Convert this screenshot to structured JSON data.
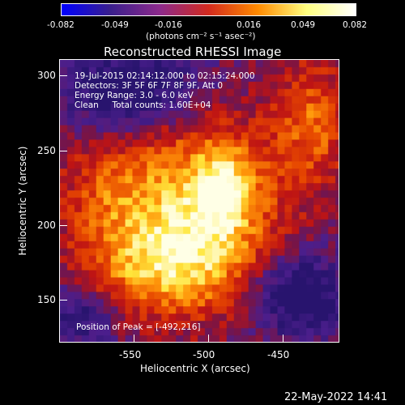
{
  "colorbar": {
    "ticks": [
      "-0.082",
      "-0.049",
      "-0.016",
      "0.016",
      "0.049",
      "0.082"
    ],
    "unit_label": "(photons cm⁻² s⁻¹ asec⁻²)",
    "colors": [
      "#0000ff",
      "#3a1f8c",
      "#8c2a8c",
      "#d22a1e",
      "#ff8a00",
      "#ffff80",
      "#ffffff"
    ]
  },
  "plot": {
    "title": "Reconstructed RHESSI Image",
    "info_lines": [
      "19-Jul-2015 02:14:12.000 to 02:15:24.000",
      "Detectors: 3F 5F 6F 7F 8F 9F, Att 0",
      "Energy Range: 3.0 - 6.0 keV",
      "Clean     Total counts: 1.60E+04"
    ],
    "peak_label": "Position of Peak = [-492,216]",
    "xlabel": "Heliocentric X (arcsec)",
    "ylabel": "Heliocentric Y (arcsec)",
    "xticks": [
      "-550",
      "-500",
      "-450"
    ],
    "yticks": [
      "300",
      "250",
      "200",
      "150"
    ]
  },
  "footer": {
    "timestamp": "22-May-2022 14:41"
  }
}
